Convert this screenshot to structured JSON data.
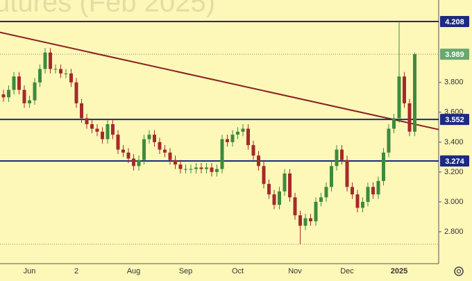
{
  "chart_data": {
    "type": "candlestick",
    "title": "utures (Feb 2025)",
    "categories": [
      null,
      null,
      null,
      null,
      null,
      "Jun",
      null,
      null,
      null,
      null,
      null,
      null,
      null,
      null,
      "2",
      null,
      null,
      null,
      null,
      null,
      null,
      null,
      null,
      null,
      null,
      "Aug",
      null,
      null,
      null,
      null,
      null,
      null,
      null,
      null,
      null,
      "Sep",
      null,
      null,
      null,
      null,
      null,
      null,
      null,
      null,
      null,
      "Oct",
      null,
      null,
      null,
      null,
      null,
      null,
      null,
      null,
      null,
      null,
      "Nov",
      null,
      null,
      null,
      null,
      null,
      null,
      null,
      null,
      null,
      "Dec",
      null,
      null,
      null,
      null,
      null,
      null,
      null,
      null,
      null,
      "2025",
      null,
      null,
      null
    ],
    "open": [
      3.72,
      3.7,
      3.75,
      3.84,
      3.75,
      3.66,
      3.68,
      3.8,
      3.89,
      4.0,
      3.89,
      3.89,
      3.86,
      3.86,
      3.8,
      3.66,
      3.56,
      3.52,
      3.49,
      3.47,
      3.42,
      3.52,
      3.45,
      3.35,
      3.33,
      3.29,
      3.24,
      3.28,
      3.42,
      3.45,
      3.4,
      3.35,
      3.33,
      3.28,
      3.25,
      3.22,
      3.22,
      3.22,
      3.23,
      3.22,
      3.23,
      3.2,
      3.22,
      3.42,
      3.4,
      3.45,
      3.47,
      3.49,
      3.38,
      3.31,
      3.24,
      3.12,
      3.05,
      2.98,
      3.07,
      3.19,
      3.03,
      2.91,
      2.84,
      2.89,
      2.87,
      3.0,
      3.03,
      3.1,
      3.24,
      3.35,
      3.28,
      3.1,
      3.05,
      2.96,
      3.0,
      3.1,
      3.05,
      3.14,
      3.33,
      3.49,
      3.56,
      3.84,
      3.66,
      3.47
    ],
    "high": [
      3.75,
      3.78,
      3.87,
      3.87,
      3.78,
      3.71,
      3.83,
      3.92,
      4.03,
      4.03,
      3.92,
      3.92,
      3.89,
      3.89,
      3.83,
      3.69,
      3.59,
      3.55,
      3.52,
      3.5,
      3.55,
      3.55,
      3.48,
      3.38,
      3.36,
      3.32,
      3.31,
      3.45,
      3.48,
      3.48,
      3.43,
      3.38,
      3.36,
      3.31,
      3.28,
      3.25,
      3.25,
      3.26,
      3.26,
      3.26,
      3.26,
      3.25,
      3.45,
      3.45,
      3.48,
      3.5,
      3.52,
      3.52,
      3.41,
      3.34,
      3.27,
      3.15,
      3.08,
      3.1,
      3.22,
      3.22,
      3.06,
      2.94,
      2.92,
      2.92,
      3.03,
      3.06,
      3.13,
      3.27,
      3.38,
      3.38,
      3.31,
      3.13,
      3.08,
      3.03,
      3.13,
      3.13,
      3.17,
      3.36,
      3.52,
      3.59,
      4.208,
      3.87,
      3.69,
      4.0
    ],
    "low": [
      3.67,
      3.67,
      3.72,
      3.72,
      3.63,
      3.63,
      3.65,
      3.77,
      3.86,
      3.86,
      3.86,
      3.83,
      3.83,
      3.77,
      3.63,
      3.53,
      3.49,
      3.46,
      3.44,
      3.39,
      3.39,
      3.42,
      3.32,
      3.3,
      3.26,
      3.21,
      3.21,
      3.25,
      3.39,
      3.37,
      3.32,
      3.3,
      3.25,
      3.22,
      3.19,
      3.19,
      3.19,
      3.19,
      3.19,
      3.19,
      3.17,
      3.17,
      3.19,
      3.37,
      3.37,
      3.42,
      3.44,
      3.35,
      3.28,
      3.21,
      3.09,
      3.02,
      2.95,
      2.95,
      3.04,
      3.0,
      2.88,
      2.716,
      2.81,
      2.84,
      2.84,
      2.97,
      3.0,
      3.07,
      3.21,
      3.25,
      3.07,
      3.02,
      2.93,
      2.93,
      2.97,
      3.02,
      3.02,
      3.11,
      3.3,
      3.46,
      3.53,
      3.63,
      3.44,
      3.44
    ],
    "close": [
      3.7,
      3.75,
      3.84,
      3.75,
      3.66,
      3.68,
      3.8,
      3.89,
      4.0,
      3.89,
      3.89,
      3.86,
      3.86,
      3.8,
      3.66,
      3.56,
      3.52,
      3.49,
      3.47,
      3.42,
      3.52,
      3.45,
      3.35,
      3.33,
      3.29,
      3.24,
      3.28,
      3.42,
      3.45,
      3.4,
      3.35,
      3.33,
      3.28,
      3.25,
      3.22,
      3.22,
      3.22,
      3.23,
      3.22,
      3.23,
      3.2,
      3.22,
      3.42,
      3.4,
      3.45,
      3.47,
      3.49,
      3.38,
      3.31,
      3.24,
      3.12,
      3.05,
      2.98,
      3.07,
      3.19,
      3.03,
      2.91,
      2.84,
      2.89,
      2.87,
      3.0,
      3.03,
      3.1,
      3.24,
      3.35,
      3.28,
      3.1,
      3.05,
      2.96,
      3.0,
      3.1,
      3.05,
      3.14,
      3.33,
      3.49,
      3.56,
      3.84,
      3.66,
      3.47,
      3.989
    ],
    "up_color": "#3d8b3d",
    "down_color": "#a52a2a",
    "ylim": [
      2.586,
      4.352
    ],
    "yticks": [
      {
        "value": 2.8,
        "label": "2.800"
      },
      {
        "value": 3.0,
        "label": "3.000"
      },
      {
        "value": 3.2,
        "label": "3.200"
      },
      {
        "value": 3.4,
        "label": "3.400"
      },
      {
        "value": 3.6,
        "label": "3.600"
      },
      {
        "value": 3.8,
        "label": "3.800"
      }
    ],
    "levels": [
      4.208,
      3.552,
      3.274
    ],
    "level_color": "#1c2a80",
    "last_color": "#6aa870",
    "trendline": {
      "values": [
        4.13,
        3.52
      ],
      "color": "#8b1f1f"
    }
  }
}
